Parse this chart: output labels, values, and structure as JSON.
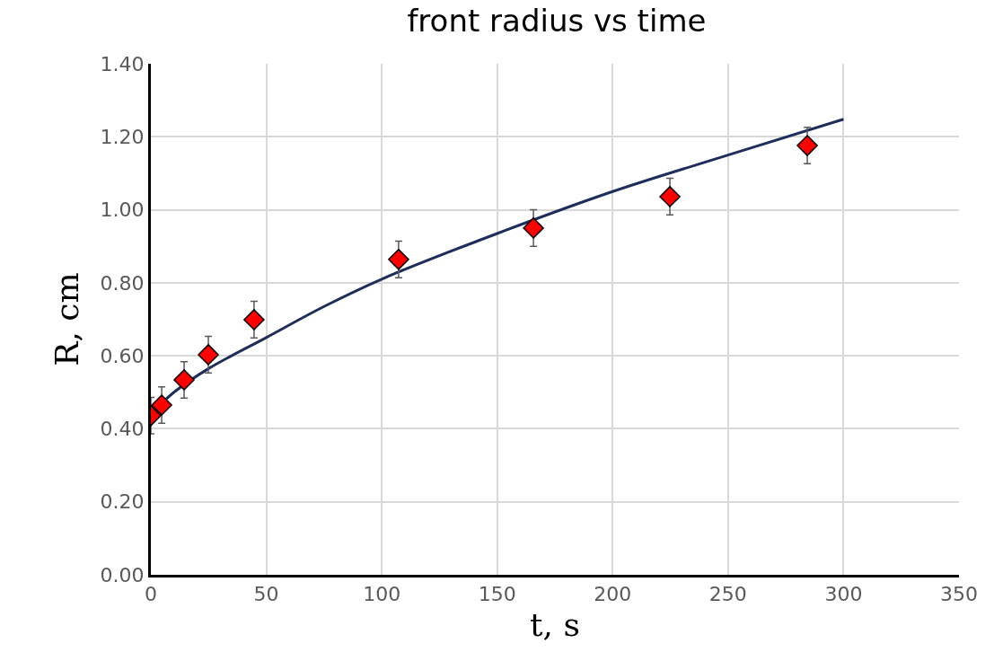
{
  "chart_data": {
    "type": "scatter",
    "title": "front radius vs time",
    "xlabel": "t, s",
    "ylabel": "R, cm",
    "series": [
      {
        "marker": "diamond",
        "color": "#ff0000",
        "x": [
          0,
          4.7,
          14.4,
          24.9,
          44.7,
          107.3,
          165.7,
          224.8,
          284.3
        ],
        "values": [
          0.436,
          0.465,
          0.534,
          0.603,
          0.699,
          0.864,
          0.95,
          1.036,
          1.176
        ],
        "errors": [
          0.05,
          0.05,
          0.05,
          0.05,
          0.05,
          0.05,
          0.05,
          0.05,
          0.05
        ]
      },
      {
        "type": "line",
        "marker": "none",
        "color": "#1f2d5a",
        "x": [
          0,
          10,
          25,
          50,
          75,
          100,
          150,
          200,
          250,
          300
        ],
        "values": [
          0.44,
          0.5,
          0.565,
          0.65,
          0.735,
          0.81,
          0.935,
          1.05,
          1.15,
          1.248
        ]
      }
    ],
    "grid": true,
    "legend": false,
    "xlim": [
      0,
      350
    ],
    "xticks": [
      0,
      50,
      100,
      150,
      200,
      250,
      300,
      350
    ],
    "ylim": [
      0,
      1.4
    ],
    "yticks": [
      {
        "value": 0,
        "label": "0.00"
      },
      {
        "value": 0.2,
        "label": "0.20"
      },
      {
        "value": 0.4,
        "label": "0.40"
      },
      {
        "value": 0.6,
        "label": "0.60"
      },
      {
        "value": 0.8,
        "label": "0.80"
      },
      {
        "value": 1,
        "label": "1.00"
      },
      {
        "value": 1.2,
        "label": "1.20"
      },
      {
        "value": 1.4,
        "label": "1.40"
      }
    ]
  }
}
